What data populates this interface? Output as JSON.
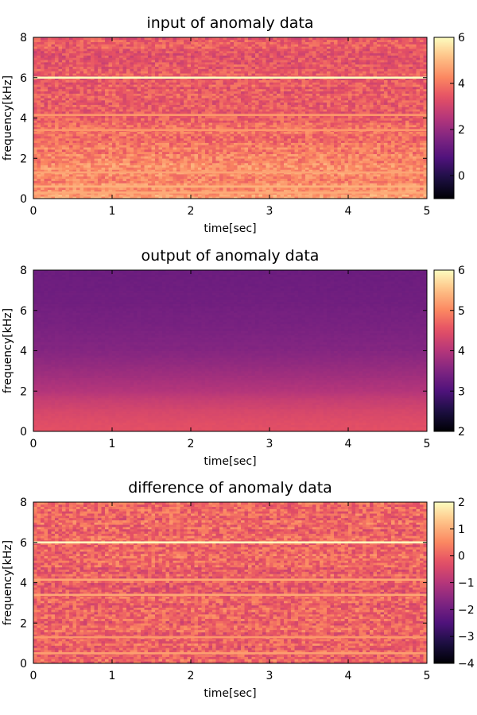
{
  "chart_data": [
    {
      "type": "heatmap",
      "title": "input of anomaly data",
      "xlabel": "time[sec]",
      "ylabel": "frequency[kHz]",
      "xlim": [
        0,
        5
      ],
      "ylim": [
        0,
        8
      ],
      "xticks": [
        0,
        1,
        2,
        3,
        4,
        5
      ],
      "yticks": [
        0,
        2,
        4,
        6,
        8
      ],
      "colorbar": {
        "range": [
          -1,
          6
        ],
        "ticks": [
          0,
          2,
          4,
          6
        ],
        "colormap": "magma"
      },
      "grid": false,
      "profile": [
        {
          "freq": 0.0,
          "value": 4.6
        },
        {
          "freq": 0.5,
          "value": 4.4
        },
        {
          "freq": 1.0,
          "value": 4.3
        },
        {
          "freq": 1.5,
          "value": 4.35
        },
        {
          "freq": 2.0,
          "value": 4.2
        },
        {
          "freq": 3.0,
          "value": 3.9
        },
        {
          "freq": 4.0,
          "value": 3.7
        },
        {
          "freq": 5.0,
          "value": 3.6
        },
        {
          "freq": 6.5,
          "value": 3.5
        },
        {
          "freq": 8.0,
          "value": 3.5
        }
      ],
      "noise": 0.55,
      "lines": [
        {
          "freq": 6.0,
          "value": 6.0
        },
        {
          "freq": 4.15,
          "value": 4.5
        },
        {
          "freq": 3.4,
          "value": 4.5
        },
        {
          "freq": 1.3,
          "value": 4.7
        },
        {
          "freq": 0.6,
          "value": 4.9
        },
        {
          "freq": 0.3,
          "value": 4.8
        }
      ]
    },
    {
      "type": "heatmap",
      "title": "output of anomaly data",
      "xlabel": "time[sec]",
      "ylabel": "frequency[kHz]",
      "xlim": [
        0,
        5
      ],
      "ylim": [
        0,
        8
      ],
      "xticks": [
        0,
        1,
        2,
        3,
        4,
        5
      ],
      "yticks": [
        0,
        2,
        4,
        6,
        8
      ],
      "colorbar": {
        "range": [
          2,
          6
        ],
        "ticks": [
          2,
          3,
          4,
          5,
          6
        ],
        "colormap": "magma"
      },
      "grid": false,
      "profile": [
        {
          "freq": 0.0,
          "value": 4.5
        },
        {
          "freq": 0.5,
          "value": 4.45
        },
        {
          "freq": 1.0,
          "value": 4.35
        },
        {
          "freq": 1.5,
          "value": 4.2
        },
        {
          "freq": 2.0,
          "value": 4.0
        },
        {
          "freq": 3.0,
          "value": 3.75
        },
        {
          "freq": 4.0,
          "value": 3.55
        },
        {
          "freq": 5.0,
          "value": 3.45
        },
        {
          "freq": 6.5,
          "value": 3.35
        },
        {
          "freq": 8.0,
          "value": 3.3
        }
      ],
      "noise": 0.03,
      "lines": []
    },
    {
      "type": "heatmap",
      "title": "difference of anomaly data",
      "xlabel": "time[sec]",
      "ylabel": "frequency[kHz]",
      "xlim": [
        0,
        5
      ],
      "ylim": [
        0,
        8
      ],
      "xticks": [
        0,
        1,
        2,
        3,
        4,
        5
      ],
      "yticks": [
        0,
        2,
        4,
        6,
        8
      ],
      "colorbar": {
        "range": [
          -4,
          2
        ],
        "ticks": [
          -4,
          -3,
          -2,
          -1,
          0,
          1,
          2
        ],
        "colormap": "magma"
      },
      "grid": false,
      "profile": [
        {
          "freq": 0.0,
          "value": 0.1
        },
        {
          "freq": 2.0,
          "value": 0.0
        },
        {
          "freq": 4.0,
          "value": 0.0
        },
        {
          "freq": 6.0,
          "value": 0.05
        },
        {
          "freq": 8.0,
          "value": 0.1
        }
      ],
      "noise": 0.55,
      "lines": [
        {
          "freq": 6.0,
          "value": 2.0
        },
        {
          "freq": 4.15,
          "value": 0.9
        },
        {
          "freq": 3.4,
          "value": 0.9
        },
        {
          "freq": 1.3,
          "value": 0.7
        },
        {
          "freq": 0.5,
          "value": 0.8
        }
      ]
    }
  ]
}
